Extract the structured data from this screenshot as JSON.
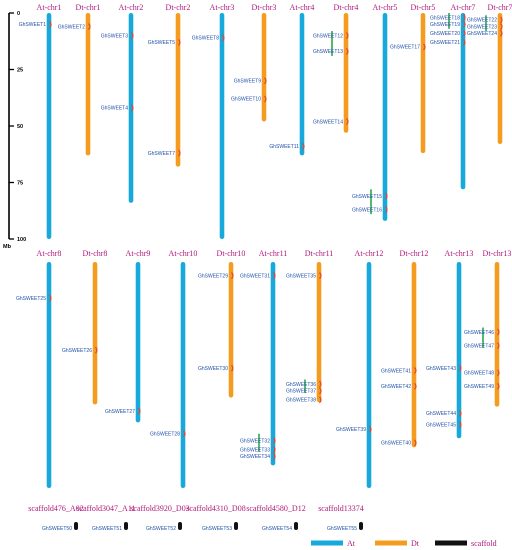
{
  "colors": {
    "At": "#17a9dc",
    "Dt": "#f39c1f",
    "scaffold": "#111111",
    "title": "#b0187a",
    "gene": "#1f4fa8",
    "duplication": "#e8432a",
    "tandem": "#28a84a"
  },
  "axis": {
    "unit": "Mb",
    "ticks": [
      0,
      25,
      50,
      75,
      100
    ],
    "max": 100
  },
  "chromosomes": [
    {
      "name": "At-chr1",
      "type": "At",
      "row": 0,
      "length": 100,
      "genes": [
        {
          "label": "GhSWEET1",
          "pos": 5
        }
      ]
    },
    {
      "name": "Dt-chr1",
      "type": "Dt",
      "row": 0,
      "length": 63,
      "genes": [
        {
          "label": "GhSWEET2",
          "pos": 6
        }
      ]
    },
    {
      "name": "At-chr2",
      "type": "At",
      "row": 0,
      "length": 84,
      "genes": [
        {
          "label": "GhSWEET3",
          "pos": 10
        },
        {
          "label": "GhSWEET4",
          "pos": 42
        }
      ]
    },
    {
      "name": "Dt-chr2",
      "type": "Dt",
      "row": 0,
      "length": 68,
      "genes": [
        {
          "label": "GhSWEET5",
          "pos": 13
        },
        {
          "label": "GhSWEET7",
          "pos": 62
        }
      ]
    },
    {
      "name": "At-chr3",
      "type": "At",
      "row": 0,
      "length": 100,
      "genes": [
        {
          "label": "GhSWEET8",
          "pos": 11
        }
      ]
    },
    {
      "name": "Dt-chr3",
      "type": "Dt",
      "row": 0,
      "length": 48,
      "genes": [
        {
          "label": "GhSWEET9",
          "pos": 30
        },
        {
          "label": "GhSWEET10",
          "pos": 38
        }
      ]
    },
    {
      "name": "At-chr4",
      "type": "At",
      "row": 0,
      "length": 63,
      "genes": [
        {
          "label": "GhSWEET11",
          "pos": 59
        }
      ]
    },
    {
      "name": "Dt-chr4",
      "type": "Dt",
      "row": 0,
      "length": 53,
      "genes": [
        {
          "label": "GhSWEET12",
          "pos": 10
        },
        {
          "label": "GhSWEET13",
          "pos": 17
        },
        {
          "label": "GhSWEET14",
          "pos": 48
        }
      ],
      "tandem": [
        {
          "from": 8,
          "to": 19
        }
      ]
    },
    {
      "name": "At-chr5",
      "type": "At",
      "row": 0,
      "length": 92,
      "genes": [
        {
          "label": "GhSWEET15",
          "pos": 81
        },
        {
          "label": "GhSWEET16",
          "pos": 87
        }
      ],
      "tandem": [
        {
          "from": 78,
          "to": 89
        }
      ]
    },
    {
      "name": "Dt-chr5",
      "type": "Dt",
      "row": 0,
      "length": 62,
      "genes": [
        {
          "label": "GhSWEET17",
          "pos": 15
        }
      ]
    },
    {
      "name": "At-chr7",
      "type": "At",
      "row": 0,
      "length": 78,
      "genes": [
        {
          "label": "GhSWEET18",
          "pos": 2
        },
        {
          "label": "GhSWEET19",
          "pos": 5
        },
        {
          "label": "GhSWEET20",
          "pos": 9
        },
        {
          "label": "GhSWEET21",
          "pos": 13
        }
      ],
      "tandem": [
        {
          "from": 0,
          "to": 7
        }
      ]
    },
    {
      "name": "Dt-chr7",
      "type": "Dt",
      "row": 0,
      "length": 58,
      "genes": [
        {
          "label": "GhSWEET22",
          "pos": 3
        },
        {
          "label": "GhSWEET23",
          "pos": 6
        },
        {
          "label": "GhSWEET24",
          "pos": 9
        }
      ],
      "tandem": [
        {
          "from": 1,
          "to": 8
        }
      ]
    },
    {
      "name": "At-chr8",
      "type": "At",
      "row": 1,
      "length": 100,
      "genes": [
        {
          "label": "GhSWEET25",
          "pos": 16
        }
      ]
    },
    {
      "name": "Dt-chr8",
      "type": "Dt",
      "row": 1,
      "length": 63,
      "genes": [
        {
          "label": "GhSWEET26",
          "pos": 39
        }
      ]
    },
    {
      "name": "At-chr9",
      "type": "At",
      "row": 1,
      "length": 71,
      "genes": [
        {
          "label": "GhSWEET27",
          "pos": 66
        }
      ]
    },
    {
      "name": "At-chr10",
      "type": "At",
      "row": 1,
      "length": 100,
      "genes": [
        {
          "label": "GhSWEET28",
          "pos": 76
        }
      ]
    },
    {
      "name": "Dt-chr10",
      "type": "Dt",
      "row": 1,
      "length": 60,
      "genes": [
        {
          "label": "GhSWEET29",
          "pos": 6
        },
        {
          "label": "GhSWEET30",
          "pos": 47
        }
      ]
    },
    {
      "name": "At-chr11",
      "type": "At",
      "row": 1,
      "length": 90,
      "genes": [
        {
          "label": "GhSWEET31",
          "pos": 6
        },
        {
          "label": "GhSWEET32",
          "pos": 79
        },
        {
          "label": "GhSWEET33",
          "pos": 83
        },
        {
          "label": "GhSWEET34",
          "pos": 86
        }
      ],
      "tandem": [
        {
          "from": 76,
          "to": 84
        }
      ]
    },
    {
      "name": "Dt-chr11",
      "type": "Dt",
      "row": 1,
      "length": 62,
      "genes": [
        {
          "label": "GhSWEET35",
          "pos": 6
        },
        {
          "label": "GhSWEET36",
          "pos": 54
        },
        {
          "label": "GhSWEET37",
          "pos": 57
        },
        {
          "label": "GhSWEET38",
          "pos": 61
        }
      ],
      "tandem": [
        {
          "from": 52,
          "to": 58
        }
      ]
    },
    {
      "name": "At-chr12",
      "type": "At",
      "row": 1,
      "length": 100,
      "genes": [
        {
          "label": "GhSWEET39",
          "pos": 74
        }
      ]
    },
    {
      "name": "Dt-chr12",
      "type": "Dt",
      "row": 1,
      "length": 82,
      "genes": [
        {
          "label": "GhSWEET40",
          "pos": 80
        },
        {
          "label": "GhSWEET41",
          "pos": 48
        },
        {
          "label": "GhSWEET42",
          "pos": 55
        }
      ]
    },
    {
      "name": "At-chr13",
      "type": "At",
      "row": 1,
      "length": 78,
      "genes": [
        {
          "label": "GhSWEET43",
          "pos": 47
        },
        {
          "label": "GhSWEET44",
          "pos": 67
        },
        {
          "label": "GhSWEET45",
          "pos": 72
        }
      ]
    },
    {
      "name": "Dt-chr13",
      "type": "Dt",
      "row": 1,
      "length": 64,
      "genes": [
        {
          "label": "GhSWEET46",
          "pos": 31
        },
        {
          "label": "GhSWEET47",
          "pos": 37
        },
        {
          "label": "GhSWEET48",
          "pos": 49
        },
        {
          "label": "GhSWEET49",
          "pos": 55
        }
      ],
      "tandem": [
        {
          "from": 29,
          "to": 38
        }
      ]
    }
  ],
  "scaffolds": [
    {
      "name": "scaffold476_A02",
      "gene": "GhSWEET50"
    },
    {
      "name": "scaffold3047_A11",
      "gene": "GhSWEET51"
    },
    {
      "name": "scaffold3920_D03",
      "gene": "GhSWEET52"
    },
    {
      "name": "scaffold4310_D08",
      "gene": "GhSWEET53"
    },
    {
      "name": "scaffold4580_D12",
      "gene": "GhSWEET54"
    },
    {
      "name": "scaffold13374",
      "gene": "GhSWEET55"
    }
  ],
  "legend": [
    {
      "label": "At",
      "type": "At"
    },
    {
      "label": "Dt",
      "type": "Dt"
    },
    {
      "label": "scaffold",
      "type": "scaffold"
    }
  ]
}
